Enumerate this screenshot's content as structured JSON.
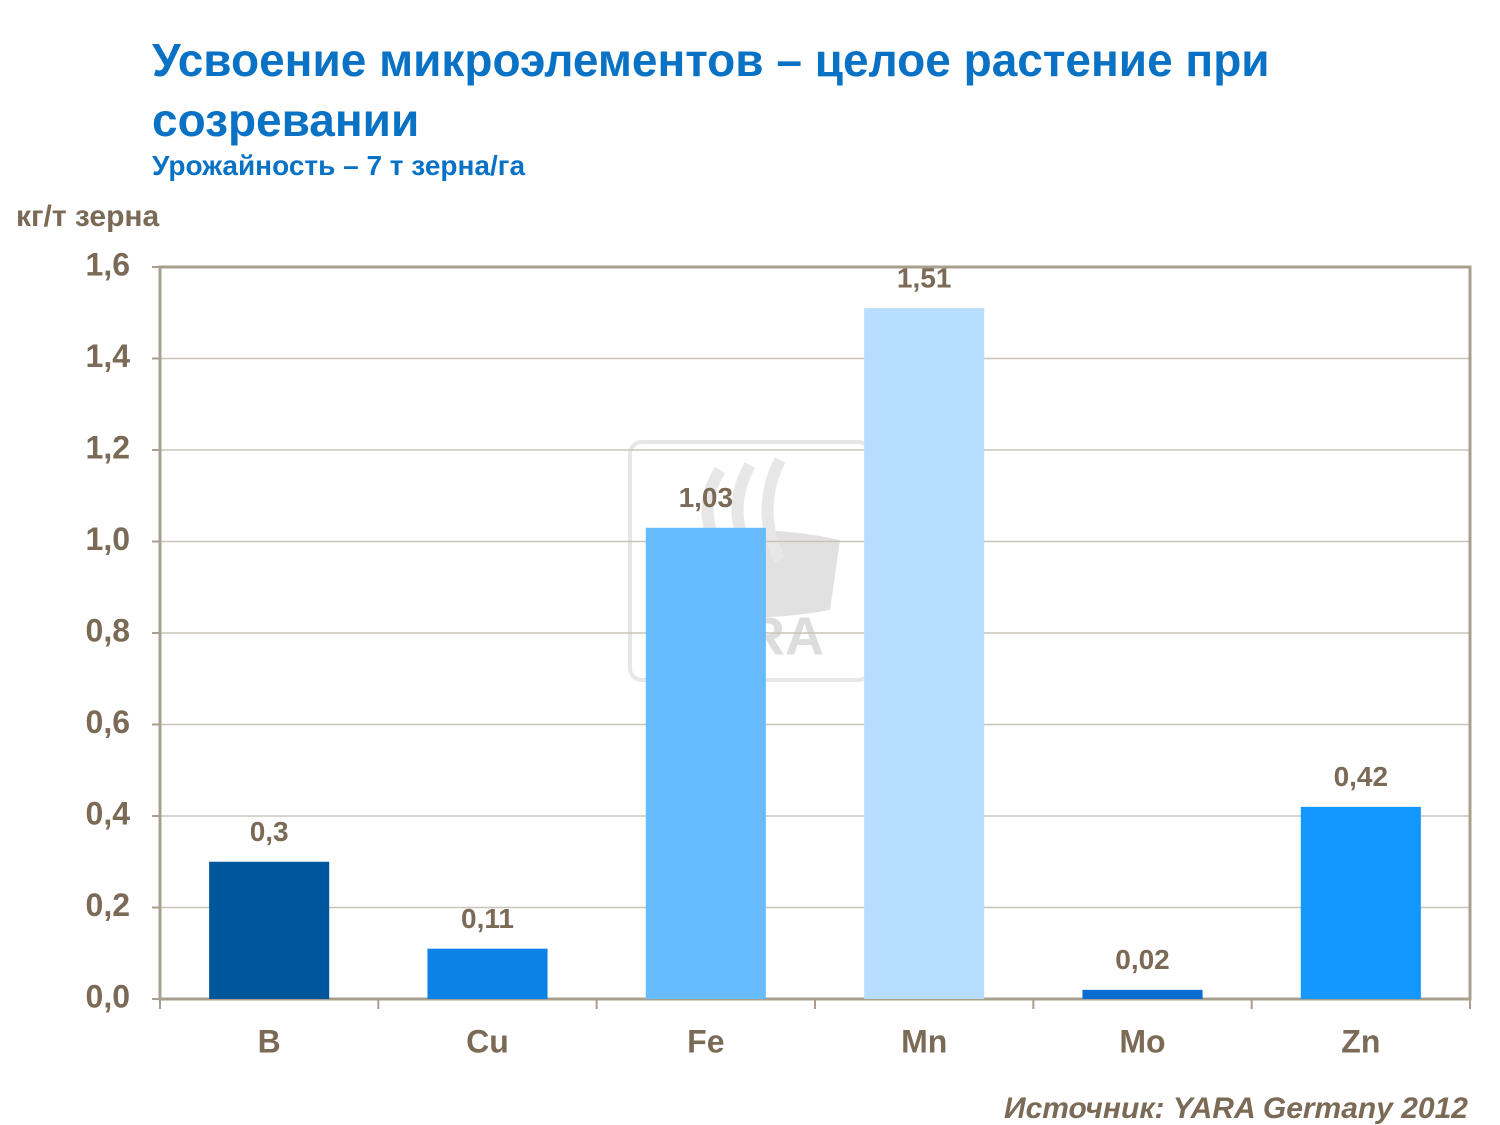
{
  "chart_data": {
    "type": "bar",
    "title": "Усвоение микроэлементов – целое растение при созревании",
    "subtitle": "Урожайность  – 7 т зерна/га",
    "y_axis_label": "кг/т зерна",
    "source": "Источник: YARA Germany 2012",
    "watermark": "YARA",
    "categories": [
      "B",
      "Cu",
      "Fe",
      "Mn",
      "Mo",
      "Zn"
    ],
    "values": [
      0.3,
      0.11,
      1.03,
      1.51,
      0.02,
      0.42
    ],
    "value_labels": [
      "0,3",
      "0,11",
      "1,03",
      "1,51",
      "0,02",
      "0,42"
    ],
    "colors": [
      "#00569a",
      "#0a82e6",
      "#66bcff",
      "#b7defe",
      "#0a6ed1",
      "#1498ff"
    ],
    "ylim": [
      0,
      1.6
    ],
    "yticks": [
      {
        "value": 0,
        "label": "0,0"
      },
      {
        "value": 0.2,
        "label": "0,2"
      },
      {
        "value": 0.4,
        "label": "0,4"
      },
      {
        "value": 0.6,
        "label": "0,6"
      },
      {
        "value": 0.8,
        "label": "0,8"
      },
      {
        "value": 1.0,
        "label": "1,0"
      },
      {
        "value": 1.2,
        "label": "1,2"
      },
      {
        "value": 1.4,
        "label": "1,4"
      },
      {
        "value": 1.6,
        "label": "1,6"
      }
    ],
    "grid": true
  }
}
